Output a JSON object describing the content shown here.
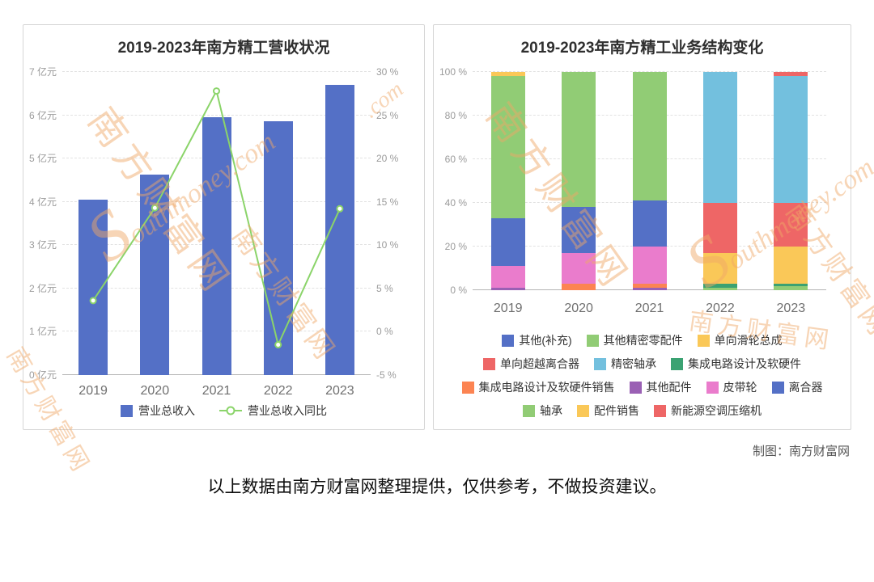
{
  "page": {
    "credit": "制图：南方财富网",
    "disclaimer": "以上数据由南方财富网整理提供，仅供参考，不做投资建议。"
  },
  "watermark": {
    "cn": "南方财富网",
    "s": "S",
    "en_rest": "outhmoney.com",
    "en_short": ".com"
  },
  "chart_data": [
    {
      "type": "bar",
      "title": "2019-2023年南方精工营收状况",
      "categories": [
        "2019",
        "2020",
        "2021",
        "2022",
        "2023"
      ],
      "series": [
        {
          "name": "营业总收入",
          "type": "bar",
          "unit": "亿元",
          "color": "#5470c6",
          "axis": "left",
          "values": [
            4.05,
            4.63,
            5.95,
            5.87,
            6.7
          ]
        },
        {
          "name": "营业总收入同比",
          "type": "line",
          "unit": "%",
          "color": "#8bd46a",
          "axis": "right",
          "values": [
            3.6,
            14.3,
            27.8,
            -1.5,
            14.2
          ]
        }
      ],
      "left_axis": {
        "min": 0,
        "max": 7,
        "step": 1,
        "suffix": "亿元"
      },
      "right_axis": {
        "min": -5,
        "max": 30,
        "step": 5,
        "suffix": "%"
      },
      "grid": true,
      "legend_position": "bottom"
    },
    {
      "type": "bar",
      "subtype": "stacked-percent",
      "title": "2019-2023年南方精工业务结构变化",
      "categories": [
        "2019",
        "2020",
        "2021",
        "2022",
        "2023"
      ],
      "y_axis": {
        "min": 0,
        "max": 100,
        "step": 20,
        "suffix": "%"
      },
      "grid": true,
      "legend_position": "bottom",
      "legend": [
        {
          "name": "其他(补充)",
          "color": "#5470c6"
        },
        {
          "name": "其他精密零配件",
          "color": "#91cc75"
        },
        {
          "name": "单向滑轮总成",
          "color": "#fac858"
        },
        {
          "name": "单向超越离合器",
          "color": "#ee6666"
        },
        {
          "name": "精密轴承",
          "color": "#73c0de"
        },
        {
          "name": "集成电路设计及软硬件",
          "color": "#3ba272"
        },
        {
          "name": "集成电路设计及软硬件销售",
          "color": "#fc8452"
        },
        {
          "name": "其他配件",
          "color": "#9a60b4"
        },
        {
          "name": "皮带轮",
          "color": "#ea7ccc"
        },
        {
          "name": "离合器",
          "color": "#5470c6"
        },
        {
          "name": "轴承",
          "color": "#91cc75"
        },
        {
          "name": "配件销售",
          "color": "#fac858"
        },
        {
          "name": "新能源空调压缩机",
          "color": "#ee6666"
        }
      ],
      "stacks": [
        [
          {
            "name": "其他配件",
            "value": 1
          },
          {
            "name": "皮带轮",
            "value": 10
          },
          {
            "name": "离合器",
            "value": 22
          },
          {
            "name": "轴承",
            "value": 65
          },
          {
            "name": "配件销售",
            "value": 2
          }
        ],
        [
          {
            "name": "集成电路设计及软硬件销售",
            "value": 3
          },
          {
            "name": "皮带轮",
            "value": 14
          },
          {
            "name": "离合器",
            "value": 21
          },
          {
            "name": "轴承",
            "value": 62
          }
        ],
        [
          {
            "name": "其他配件",
            "value": 1
          },
          {
            "name": "集成电路设计及软硬件销售",
            "value": 2
          },
          {
            "name": "皮带轮",
            "value": 17
          },
          {
            "name": "离合器",
            "value": 21
          },
          {
            "name": "轴承",
            "value": 59
          }
        ],
        [
          {
            "name": "其他精密零配件",
            "value": 1
          },
          {
            "name": "集成电路设计及软硬件",
            "value": 2
          },
          {
            "name": "单向滑轮总成",
            "value": 14
          },
          {
            "name": "单向超越离合器",
            "value": 23
          },
          {
            "name": "精密轴承",
            "value": 60
          }
        ],
        [
          {
            "name": "其他精密零配件",
            "value": 2
          },
          {
            "name": "集成电路设计及软硬件",
            "value": 1
          },
          {
            "name": "单向滑轮总成",
            "value": 17
          },
          {
            "name": "单向超越离合器",
            "value": 20
          },
          {
            "name": "精密轴承",
            "value": 58
          },
          {
            "name": "新能源空调压缩机",
            "value": 2
          }
        ]
      ]
    }
  ]
}
